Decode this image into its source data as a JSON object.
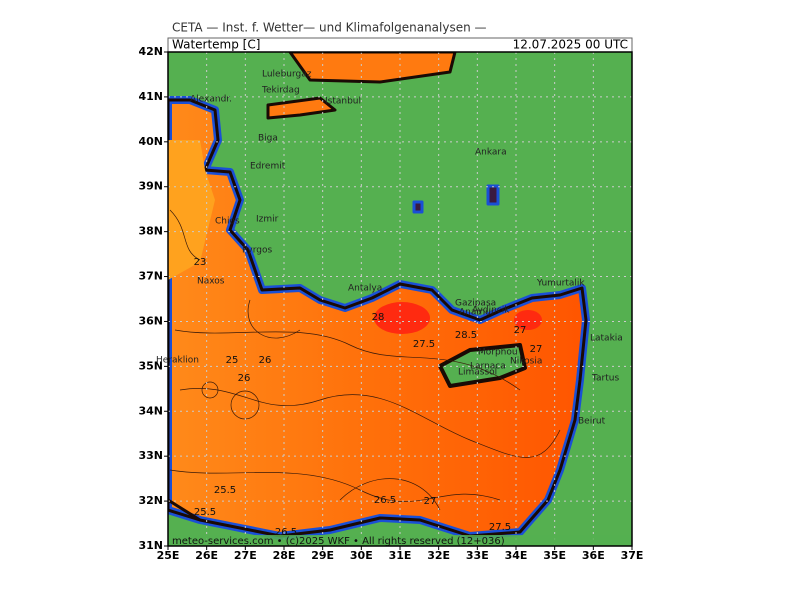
{
  "header": {
    "source": "CETA — Inst. f. Wetter— und Klimafolgenanalysen —",
    "variable": "Watertemp [C]",
    "valid_time": "12.07.2025 00 UTC"
  },
  "axes": {
    "lon_labels": [
      "25E",
      "26E",
      "27E",
      "28E",
      "29E",
      "30E",
      "31E",
      "32E",
      "33E",
      "34E",
      "35E",
      "36E",
      "37E"
    ],
    "lat_labels": [
      "31N",
      "32N",
      "33N",
      "34N",
      "35N",
      "36N",
      "37N",
      "38N",
      "39N",
      "40N",
      "41N",
      "42N"
    ]
  },
  "cities": [
    "Luleburgaz",
    "Tekirdag",
    "Istanbul",
    "Alexandr.",
    "Biga",
    "Edremit",
    "Ankara",
    "Izmir",
    "Chios",
    "Pyrgos",
    "Naxos",
    "Antalya",
    "Gazipasa",
    "Anamur",
    "Aydincik",
    "Yumurtalik",
    "Latakia",
    "Tartus",
    "Beirut",
    "Heraklion",
    "Morphou",
    "Nikosia",
    "Limassol",
    "Larnaca"
  ],
  "contour_labels": [
    "25.5",
    "27.5",
    "26",
    "25",
    "27",
    "28",
    "26.5",
    "25.5",
    "27.5",
    "26.5",
    "27",
    "26",
    "23",
    "28.5",
    "27"
  ],
  "footer": "meteo-services.com • (c)2025 WKF • All rights reserved (12+036)"
}
